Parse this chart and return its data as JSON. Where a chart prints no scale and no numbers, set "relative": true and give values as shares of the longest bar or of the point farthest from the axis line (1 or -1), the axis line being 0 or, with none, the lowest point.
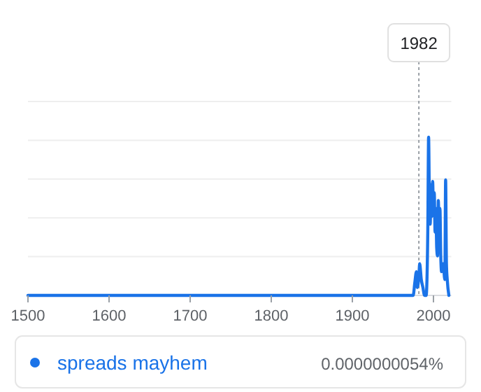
{
  "chart_data": {
    "type": "line",
    "relative": true,
    "grid": "y",
    "legend": "bottom",
    "marker": "none",
    "line_style": "solid",
    "xlim": [
      1500,
      2022
    ],
    "xticks": [
      1500,
      1600,
      1700,
      1800,
      1900,
      2000
    ],
    "x": [
      1500,
      1975,
      1977,
      1979,
      1980,
      1982,
      1983,
      1985,
      1987,
      1989,
      1991,
      1993,
      1994,
      1995,
      1996,
      1997,
      1998,
      1999,
      2000,
      2001,
      2002,
      2003,
      2004,
      2005,
      2006,
      2007,
      2008,
      2009,
      2010,
      2012,
      2014,
      2015,
      2016,
      2017,
      2019
    ],
    "series": [
      {
        "name": "spreads mayhem",
        "color": "#1a73e8",
        "values": [
          0,
          0,
          0.08,
          0.15,
          0.05,
          0.12,
          0.2,
          0.1,
          0.05,
          0,
          0,
          0.4,
          1.0,
          0.6,
          0.45,
          0.7,
          0.5,
          0.72,
          0.55,
          0.65,
          0.4,
          0.55,
          0.3,
          0.25,
          0.6,
          0.4,
          0.55,
          0.25,
          0.15,
          0.2,
          0.1,
          0.73,
          0.2,
          0.1,
          0
        ]
      }
    ],
    "ref_lines": [
      {
        "axis": "x",
        "value": 1982,
        "label": "1982",
        "line_style": "dotted",
        "color": "#9aa0a6"
      }
    ],
    "annotations": [
      "0.0000000054%"
    ]
  }
}
